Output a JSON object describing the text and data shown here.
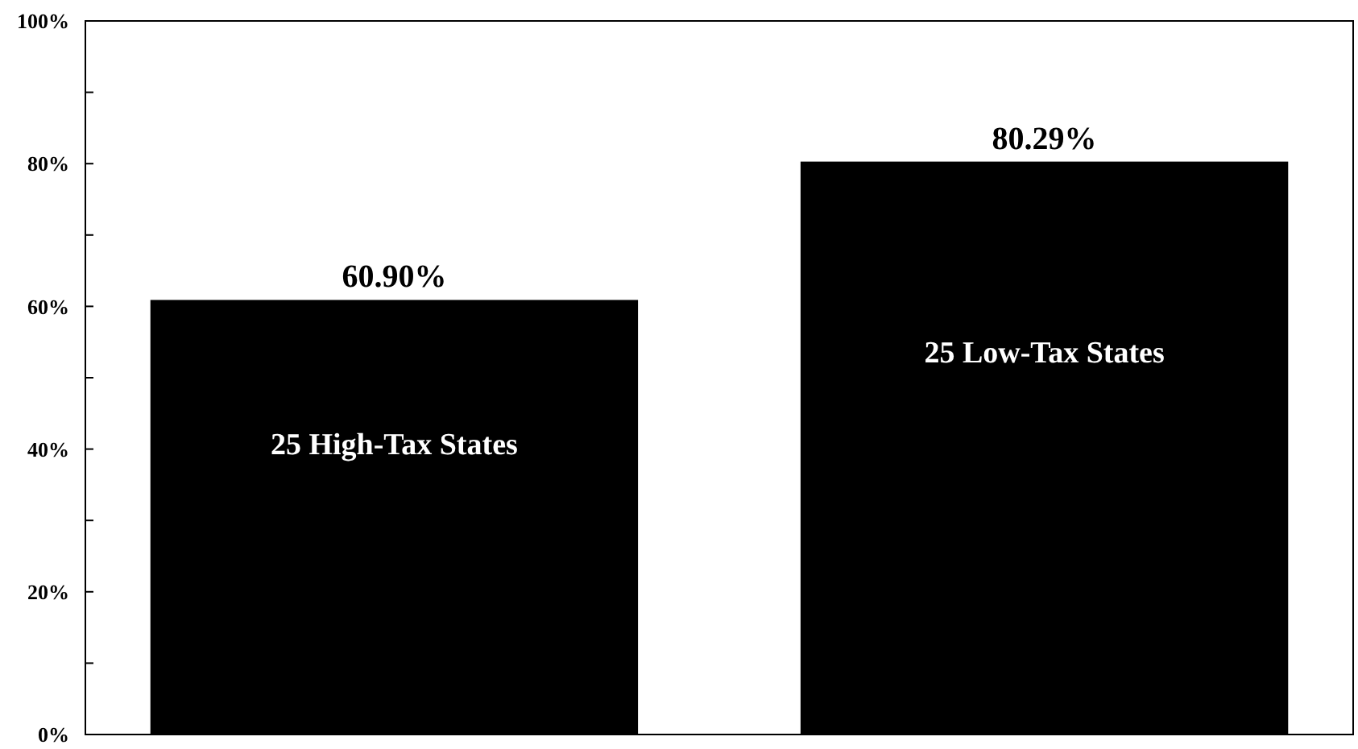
{
  "chart_data": {
    "type": "bar",
    "categories": [
      "25 High-Tax States",
      "25 Low-Tax States"
    ],
    "values": [
      60.9,
      80.29
    ],
    "color": "#000000",
    "value_labels": [
      "60.90%",
      "80.29%"
    ],
    "ylim": [
      0,
      100
    ],
    "yticks": [
      {
        "value": 0,
        "label": "0%"
      },
      {
        "value": 10,
        "label": null
      },
      {
        "value": 20,
        "label": "20%"
      },
      {
        "value": 30,
        "label": null
      },
      {
        "value": 40,
        "label": "40%"
      },
      {
        "value": 50,
        "label": null
      },
      {
        "value": 60,
        "label": "60%"
      },
      {
        "value": 70,
        "label": null
      },
      {
        "value": 80,
        "label": "80%"
      },
      {
        "value": 90,
        "label": null
      },
      {
        "value": 100,
        "label": "100%"
      }
    ],
    "grid": false
  }
}
